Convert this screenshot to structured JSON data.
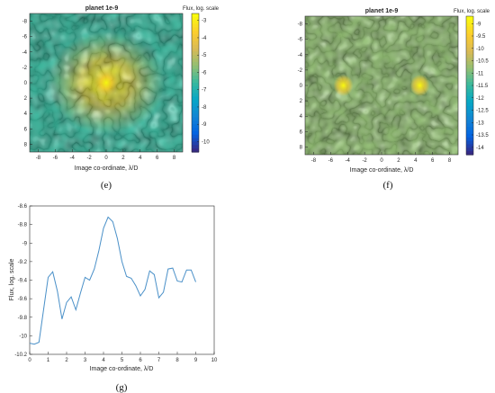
{
  "colors": {
    "parula": [
      "#352a87",
      "#0363e1",
      "#1485d4",
      "#06a7c6",
      "#38b99e",
      "#92bf73",
      "#d9ba56",
      "#fcce2e",
      "#f9fb0e"
    ],
    "line": "#4a90c8",
    "axis": "#262626",
    "frame": "#a0a0a0"
  },
  "panels": {
    "e": {
      "caption": "(e)"
    },
    "f": {
      "caption": "(f)"
    },
    "g": {
      "caption": "(g)"
    }
  },
  "chart_data": [
    {
      "type": "heatmap",
      "title": "planet 1e-9",
      "xlabel": "Image co-ordinate, λ/D",
      "ylabel": "",
      "colorbar_label": "Flux, log. scale",
      "xlim": [
        -9,
        9
      ],
      "ylim": [
        -9,
        9
      ],
      "x_ticks": [
        -8,
        -6,
        -4,
        -2,
        0,
        2,
        4,
        6,
        8
      ],
      "y_ticks": [
        -8,
        -6,
        -4,
        -2,
        0,
        2,
        4,
        6,
        8
      ],
      "y_reversed": true,
      "clim": [
        -10.6,
        -2.6
      ],
      "colorbar_ticks": [
        -3,
        -4,
        -5,
        -6,
        -7,
        -8,
        -9,
        -10
      ],
      "bright_spots": [
        {
          "x": 0,
          "y": 0
        }
      ],
      "grid": false
    },
    {
      "type": "heatmap",
      "title": "planet 1e-9",
      "xlabel": "Image co-ordinate, λ/D",
      "ylabel": "",
      "colorbar_label": "Flux, log. scale",
      "xlim": [
        -9,
        9
      ],
      "ylim": [
        -9,
        9
      ],
      "x_ticks": [
        -8,
        -6,
        -4,
        -2,
        0,
        2,
        4,
        6,
        8
      ],
      "y_ticks": [
        -8,
        -6,
        -4,
        -2,
        0,
        2,
        4,
        6,
        8
      ],
      "y_reversed": true,
      "clim": [
        -14.3,
        -8.7
      ],
      "colorbar_ticks": [
        -9,
        -9.5,
        -10,
        -10.5,
        -11,
        -11.5,
        -12,
        -12.5,
        -13,
        -13.5,
        -14
      ],
      "bright_spots": [
        {
          "x": -4.5,
          "y": 0
        },
        {
          "x": 4.5,
          "y": 0
        }
      ],
      "grid": false
    },
    {
      "type": "line",
      "title": "",
      "xlabel": "Image co-ordinate, λ/D",
      "ylabel": "Flux, log. scale",
      "xlim": [
        0,
        10
      ],
      "ylim": [
        -10.2,
        -8.6
      ],
      "x_ticks": [
        0,
        1,
        2,
        3,
        4,
        5,
        6,
        7,
        8,
        9,
        10
      ],
      "y_ticks": [
        -8.6,
        -8.8,
        -9,
        -9.2,
        -9.4,
        -9.6,
        -9.8,
        -10,
        -10.2
      ],
      "grid": false,
      "x": [
        0,
        0.25,
        0.5,
        0.75,
        1.0,
        1.25,
        1.5,
        1.75,
        2.0,
        2.25,
        2.5,
        2.75,
        3.0,
        3.25,
        3.5,
        3.75,
        4.0,
        4.25,
        4.5,
        4.75,
        5.0,
        5.25,
        5.5,
        5.75,
        6.0,
        6.25,
        6.5,
        6.75,
        7.0,
        7.25,
        7.5,
        7.75,
        8.0,
        8.25,
        8.5,
        8.75,
        9.0
      ],
      "y": [
        -10.08,
        -10.09,
        -10.07,
        -9.72,
        -9.37,
        -9.31,
        -9.52,
        -9.82,
        -9.64,
        -9.58,
        -9.72,
        -9.54,
        -9.37,
        -9.4,
        -9.28,
        -9.08,
        -8.84,
        -8.72,
        -8.77,
        -8.95,
        -9.2,
        -9.36,
        -9.38,
        -9.46,
        -9.57,
        -9.5,
        -9.3,
        -9.34,
        -9.59,
        -9.53,
        -9.28,
        -9.27,
        -9.41,
        -9.42,
        -9.29,
        -9.29,
        -9.42
      ]
    }
  ]
}
